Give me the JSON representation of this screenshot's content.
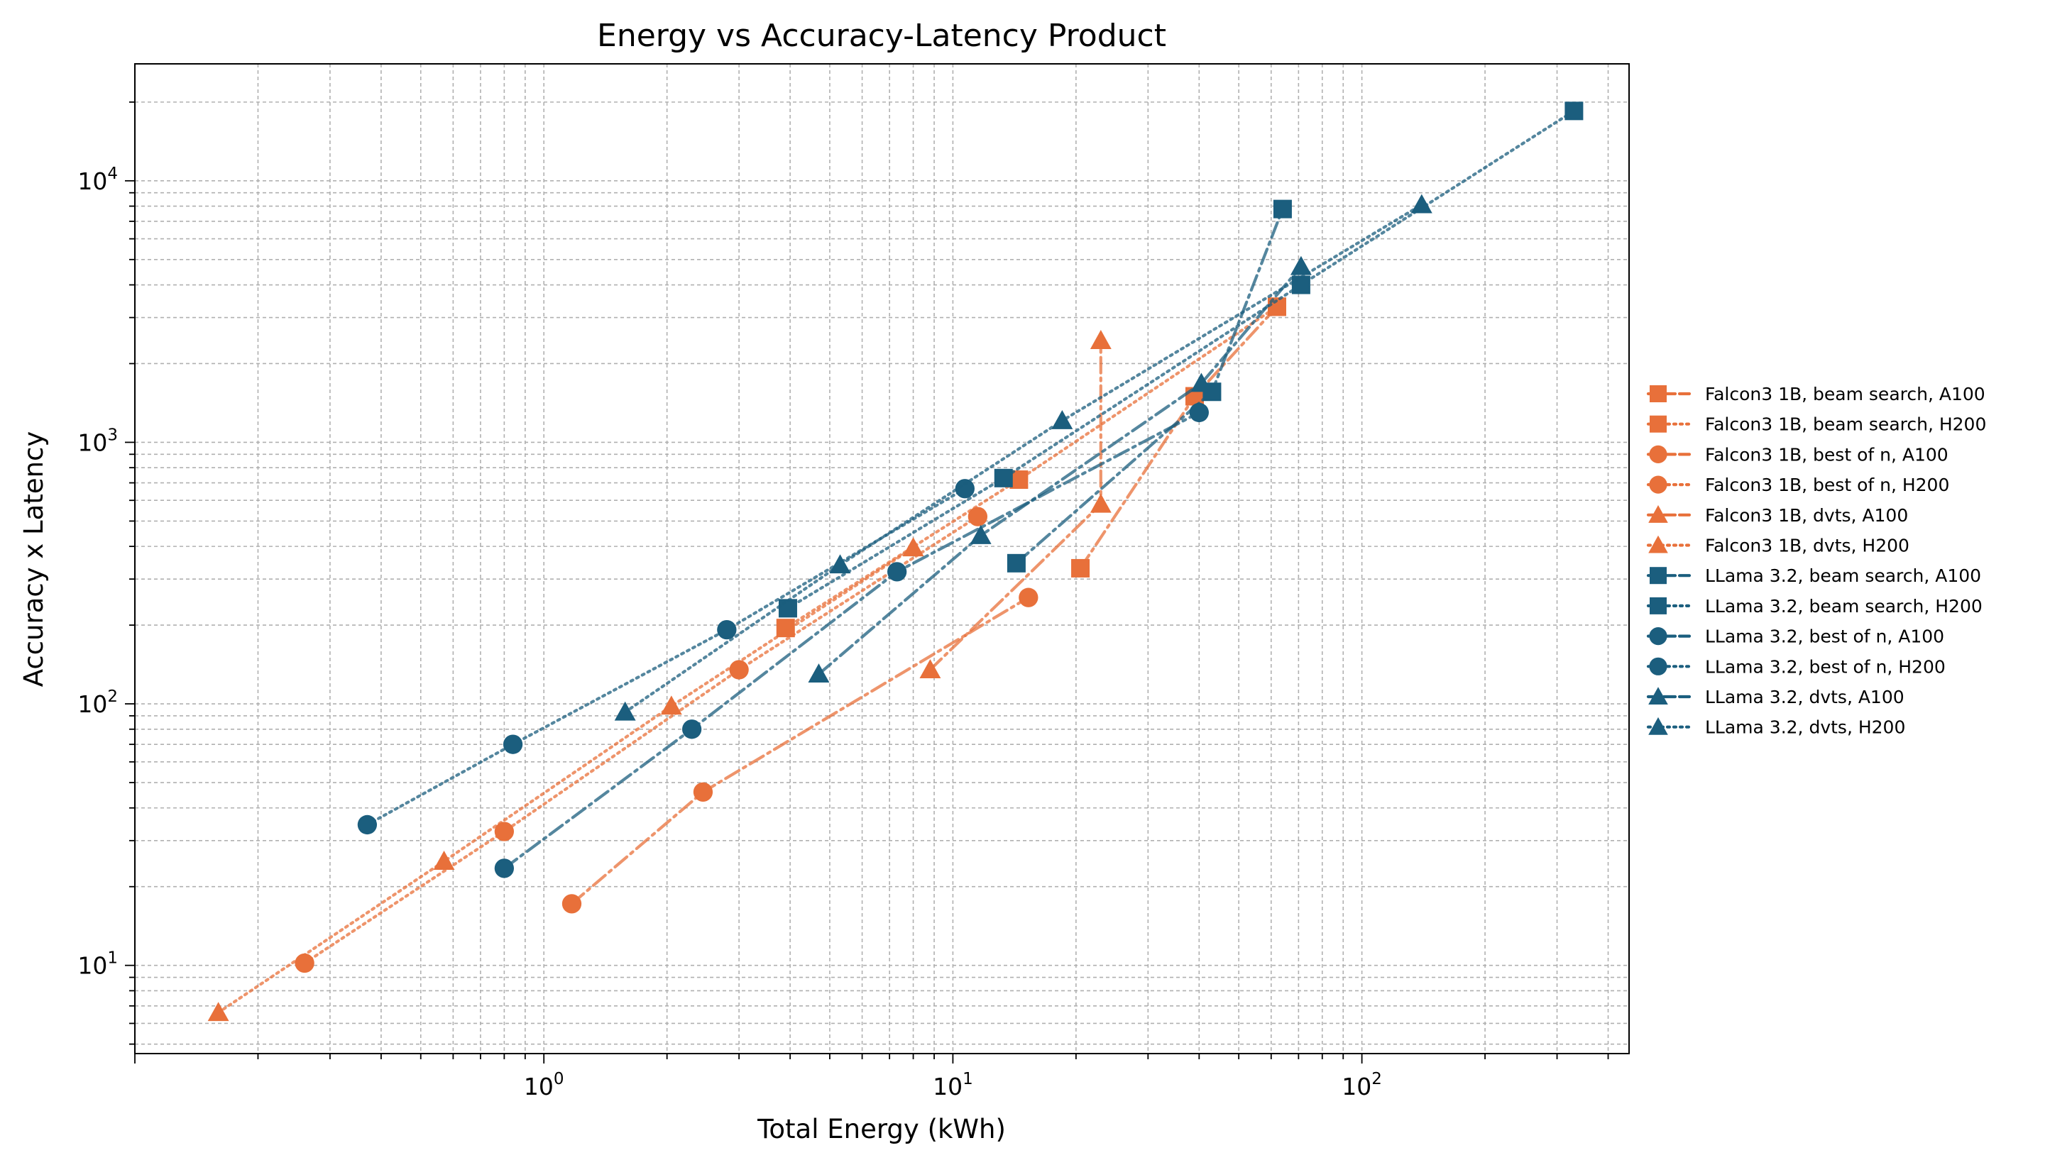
{
  "chart_data": {
    "type": "line",
    "title": "Energy vs Accuracy-Latency Product",
    "xlabel": "Total Energy (kWh)",
    "ylabel": "Accuracy x Latency",
    "x_scale": "log",
    "y_scale": "log",
    "xlim": [
      0.1,
      450
    ],
    "ylim": [
      4.6,
      28000
    ],
    "x_major_ticks": [
      {
        "value": 1,
        "base": "10",
        "exp": "0"
      },
      {
        "value": 10,
        "base": "10",
        "exp": "1"
      },
      {
        "value": 100,
        "base": "10",
        "exp": "2"
      }
    ],
    "y_major_ticks": [
      {
        "value": 10,
        "base": "10",
        "exp": "1"
      },
      {
        "value": 100,
        "base": "10",
        "exp": "2"
      },
      {
        "value": 1000,
        "base": "10",
        "exp": "3"
      },
      {
        "value": 10000,
        "base": "10",
        "exp": "4"
      }
    ],
    "grid": "major and minor, dashed",
    "legend_position": "outside right",
    "colors": {
      "falcon": "#E8703A",
      "llama": "#1B5E7E"
    },
    "series": [
      {
        "name": "Falcon3 1B, beam search, A100",
        "model": "falcon",
        "marker": "square",
        "linestyle": "dashdot",
        "x": [
          20.5,
          39.0,
          62.0
        ],
        "y": [
          330,
          1500,
          3300
        ]
      },
      {
        "name": "Falcon3 1B, beam search, H200",
        "model": "falcon",
        "marker": "square",
        "linestyle": "dotted",
        "x": [
          3.9,
          14.5,
          62.0
        ],
        "y": [
          195,
          720,
          3300
        ]
      },
      {
        "name": "Falcon3 1B, best of n, A100",
        "model": "falcon",
        "marker": "circle",
        "linestyle": "dashdot",
        "x": [
          1.17,
          2.45,
          15.3
        ],
        "y": [
          17.2,
          46.0,
          255
        ]
      },
      {
        "name": "Falcon3 1B, best of n, H200",
        "model": "falcon",
        "marker": "circle",
        "linestyle": "dotted",
        "x": [
          0.26,
          0.8,
          3.0,
          11.5
        ],
        "y": [
          10.2,
          32.5,
          135,
          520
        ]
      },
      {
        "name": "Falcon3 1B, dvts, A100",
        "model": "falcon",
        "marker": "triangle",
        "linestyle": "dashdot",
        "x": [
          8.8,
          23.0,
          23.0
        ],
        "y": [
          135,
          580,
          2450
        ]
      },
      {
        "name": "Falcon3 1B, dvts, H200",
        "model": "falcon",
        "marker": "triangle",
        "linestyle": "dotted",
        "x": [
          0.16,
          0.57,
          2.05,
          8.0
        ],
        "y": [
          6.6,
          25.0,
          98,
          395
        ]
      },
      {
        "name": "LLama 3.2, beam search, A100",
        "model": "llama",
        "marker": "square",
        "linestyle": "dashdot",
        "x": [
          14.3,
          43.0,
          64.0
        ],
        "y": [
          345,
          1560,
          7800
        ]
      },
      {
        "name": "LLama 3.2, beam search, H200",
        "model": "llama",
        "marker": "square",
        "linestyle": "dotted",
        "x": [
          3.95,
          13.3,
          71.0,
          330.0
        ],
        "y": [
          232,
          730,
          4000,
          18500
        ]
      },
      {
        "name": "LLama 3.2, best of n, A100",
        "model": "llama",
        "marker": "circle",
        "linestyle": "dashdot",
        "x": [
          0.8,
          2.3,
          7.3,
          40.0
        ],
        "y": [
          23.5,
          80,
          320,
          1300
        ]
      },
      {
        "name": "LLama 3.2, best of n, H200",
        "model": "llama",
        "marker": "circle",
        "linestyle": "dotted",
        "x": [
          0.37,
          0.84,
          2.8,
          10.7
        ],
        "y": [
          34.5,
          70,
          192,
          665
        ]
      },
      {
        "name": "LLama 3.2, dvts, A100",
        "model": "llama",
        "marker": "triangle",
        "linestyle": "dashdot",
        "x": [
          4.7,
          11.7,
          40.5,
          71.0
        ],
        "y": [
          130,
          440,
          1680,
          4700
        ]
      },
      {
        "name": "LLama 3.2, dvts, H200",
        "model": "llama",
        "marker": "triangle",
        "linestyle": "dotted",
        "x": [
          1.58,
          5.3,
          18.5,
          140.0
        ],
        "y": [
          93,
          340,
          1210,
          8100
        ]
      }
    ]
  }
}
